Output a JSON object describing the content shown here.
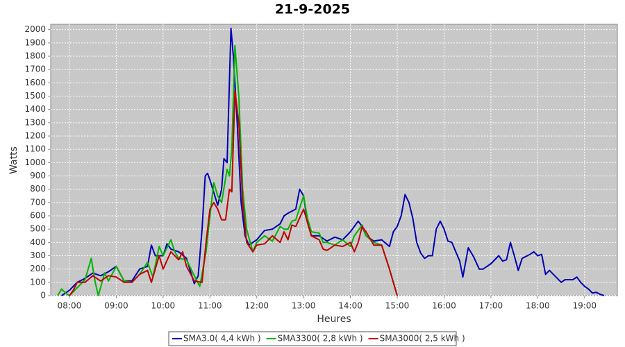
{
  "chart_data": {
    "type": "line",
    "title": "21-9-2025",
    "x_label": "Heures",
    "y_label": "Watts",
    "xlim": [
      456,
      1182
    ],
    "ylim": [
      0,
      2040
    ],
    "xticks": [
      {
        "value": 480,
        "label": "08:00"
      },
      {
        "value": 540,
        "label": "09:00"
      },
      {
        "value": 600,
        "label": "10:00"
      },
      {
        "value": 660,
        "label": "11:00"
      },
      {
        "value": 720,
        "label": "12:00"
      },
      {
        "value": 780,
        "label": "13:00"
      },
      {
        "value": 840,
        "label": "14:00"
      },
      {
        "value": 900,
        "label": "15:00"
      },
      {
        "value": 960,
        "label": "16:00"
      },
      {
        "value": 1020,
        "label": "17:00"
      },
      {
        "value": 1080,
        "label": "18:00"
      },
      {
        "value": 1140,
        "label": "19:00"
      }
    ],
    "yticks": [
      0,
      100,
      200,
      300,
      400,
      500,
      600,
      700,
      800,
      900,
      1000,
      1100,
      1200,
      1300,
      1400,
      1500,
      1600,
      1700,
      1800,
      1900,
      2000
    ],
    "grid": true,
    "legend": "bottom",
    "series": [
      {
        "name": "SMA3.0( 4,4 kWh )",
        "color": "#0000b4",
        "x": [
          470,
          480,
          490,
          500,
          510,
          520,
          530,
          540,
          550,
          560,
          570,
          580,
          585,
          590,
          600,
          605,
          610,
          620,
          630,
          640,
          645,
          650,
          654,
          657,
          660,
          670,
          675,
          678,
          682,
          687,
          690,
          695,
          700,
          705,
          710,
          720,
          730,
          740,
          750,
          755,
          760,
          770,
          775,
          780,
          785,
          790,
          800,
          810,
          820,
          830,
          840,
          850,
          855,
          860,
          870,
          880,
          890,
          895,
          900,
          905,
          910,
          915,
          920,
          925,
          930,
          935,
          940,
          945,
          950,
          955,
          960,
          965,
          970,
          975,
          980,
          984,
          991,
          998,
          1005,
          1010,
          1020,
          1030,
          1035,
          1040,
          1045,
          1050,
          1055,
          1060,
          1070,
          1075,
          1080,
          1085,
          1090,
          1095,
          1100,
          1105,
          1110,
          1115,
          1125,
          1130,
          1135,
          1140,
          1145,
          1150,
          1155,
          1160,
          1165
        ],
        "values": [
          0,
          40,
          100,
          130,
          170,
          150,
          180,
          220,
          110,
          110,
          200,
          220,
          380,
          300,
          300,
          390,
          350,
          330,
          280,
          90,
          150,
          500,
          900,
          920,
          870,
          680,
          800,
          1030,
          1000,
          2010,
          1800,
          1300,
          700,
          450,
          380,
          420,
          490,
          500,
          540,
          600,
          620,
          650,
          800,
          750,
          550,
          450,
          450,
          410,
          440,
          420,
          480,
          560,
          520,
          450,
          410,
          420,
          370,
          480,
          520,
          600,
          760,
          700,
          580,
          400,
          320,
          280,
          300,
          300,
          500,
          560,
          500,
          410,
          400,
          330,
          260,
          140,
          360,
          290,
          200,
          200,
          240,
          300,
          260,
          270,
          400,
          300,
          190,
          280,
          310,
          330,
          300,
          310,
          160,
          190,
          160,
          130,
          100,
          120,
          120,
          140,
          100,
          70,
          50,
          20,
          25,
          10,
          0
        ]
      },
      {
        "name": "SMA3300( 2,8 kWh )",
        "color": "#00b400",
        "x": [
          465,
          470,
          475,
          480,
          490,
          500,
          508,
          513,
          517,
          525,
          530,
          540,
          550,
          560,
          570,
          580,
          587,
          595,
          600,
          610,
          615,
          620,
          630,
          640,
          647,
          655,
          662,
          665,
          670,
          675,
          682,
          685,
          688,
          692,
          697,
          702,
          707,
          715,
          720,
          730,
          740,
          750,
          755,
          760,
          765,
          770,
          780,
          785,
          790,
          800,
          805,
          810,
          820,
          830,
          840,
          845,
          855,
          860,
          870,
          880,
          890,
          900
        ],
        "values": [
          0,
          50,
          20,
          0,
          60,
          120,
          280,
          100,
          0,
          170,
          110,
          220,
          110,
          100,
          160,
          250,
          140,
          370,
          300,
          420,
          330,
          280,
          270,
          150,
          70,
          330,
          700,
          850,
          750,
          700,
          950,
          900,
          1100,
          1880,
          1500,
          800,
          500,
          330,
          400,
          450,
          410,
          520,
          500,
          500,
          560,
          570,
          750,
          580,
          480,
          470,
          400,
          400,
          380,
          420,
          370,
          450,
          530,
          450,
          400,
          380,
          200,
          0
        ]
      },
      {
        "name": "SMA3000( 2,5 kWh )",
        "color": "#c00000",
        "x": [
          480,
          485,
          490,
          500,
          510,
          520,
          530,
          540,
          550,
          560,
          570,
          580,
          585,
          595,
          600,
          610,
          620,
          625,
          630,
          640,
          650,
          655,
          660,
          665,
          670,
          675,
          680,
          685,
          688,
          692,
          697,
          702,
          707,
          715,
          720,
          730,
          740,
          750,
          755,
          760,
          765,
          770,
          780,
          785,
          790,
          800,
          805,
          810,
          820,
          830,
          840,
          845,
          850,
          855,
          860,
          870,
          880,
          890,
          900
        ],
        "values": [
          0,
          40,
          100,
          100,
          150,
          110,
          150,
          140,
          100,
          100,
          160,
          190,
          100,
          300,
          200,
          330,
          270,
          330,
          220,
          110,
          100,
          400,
          650,
          700,
          650,
          570,
          570,
          800,
          780,
          1540,
          1300,
          700,
          400,
          330,
          380,
          390,
          450,
          400,
          480,
          420,
          530,
          520,
          650,
          550,
          450,
          420,
          350,
          340,
          380,
          370,
          400,
          330,
          400,
          520,
          480,
          380,
          380,
          200,
          0
        ]
      }
    ]
  }
}
